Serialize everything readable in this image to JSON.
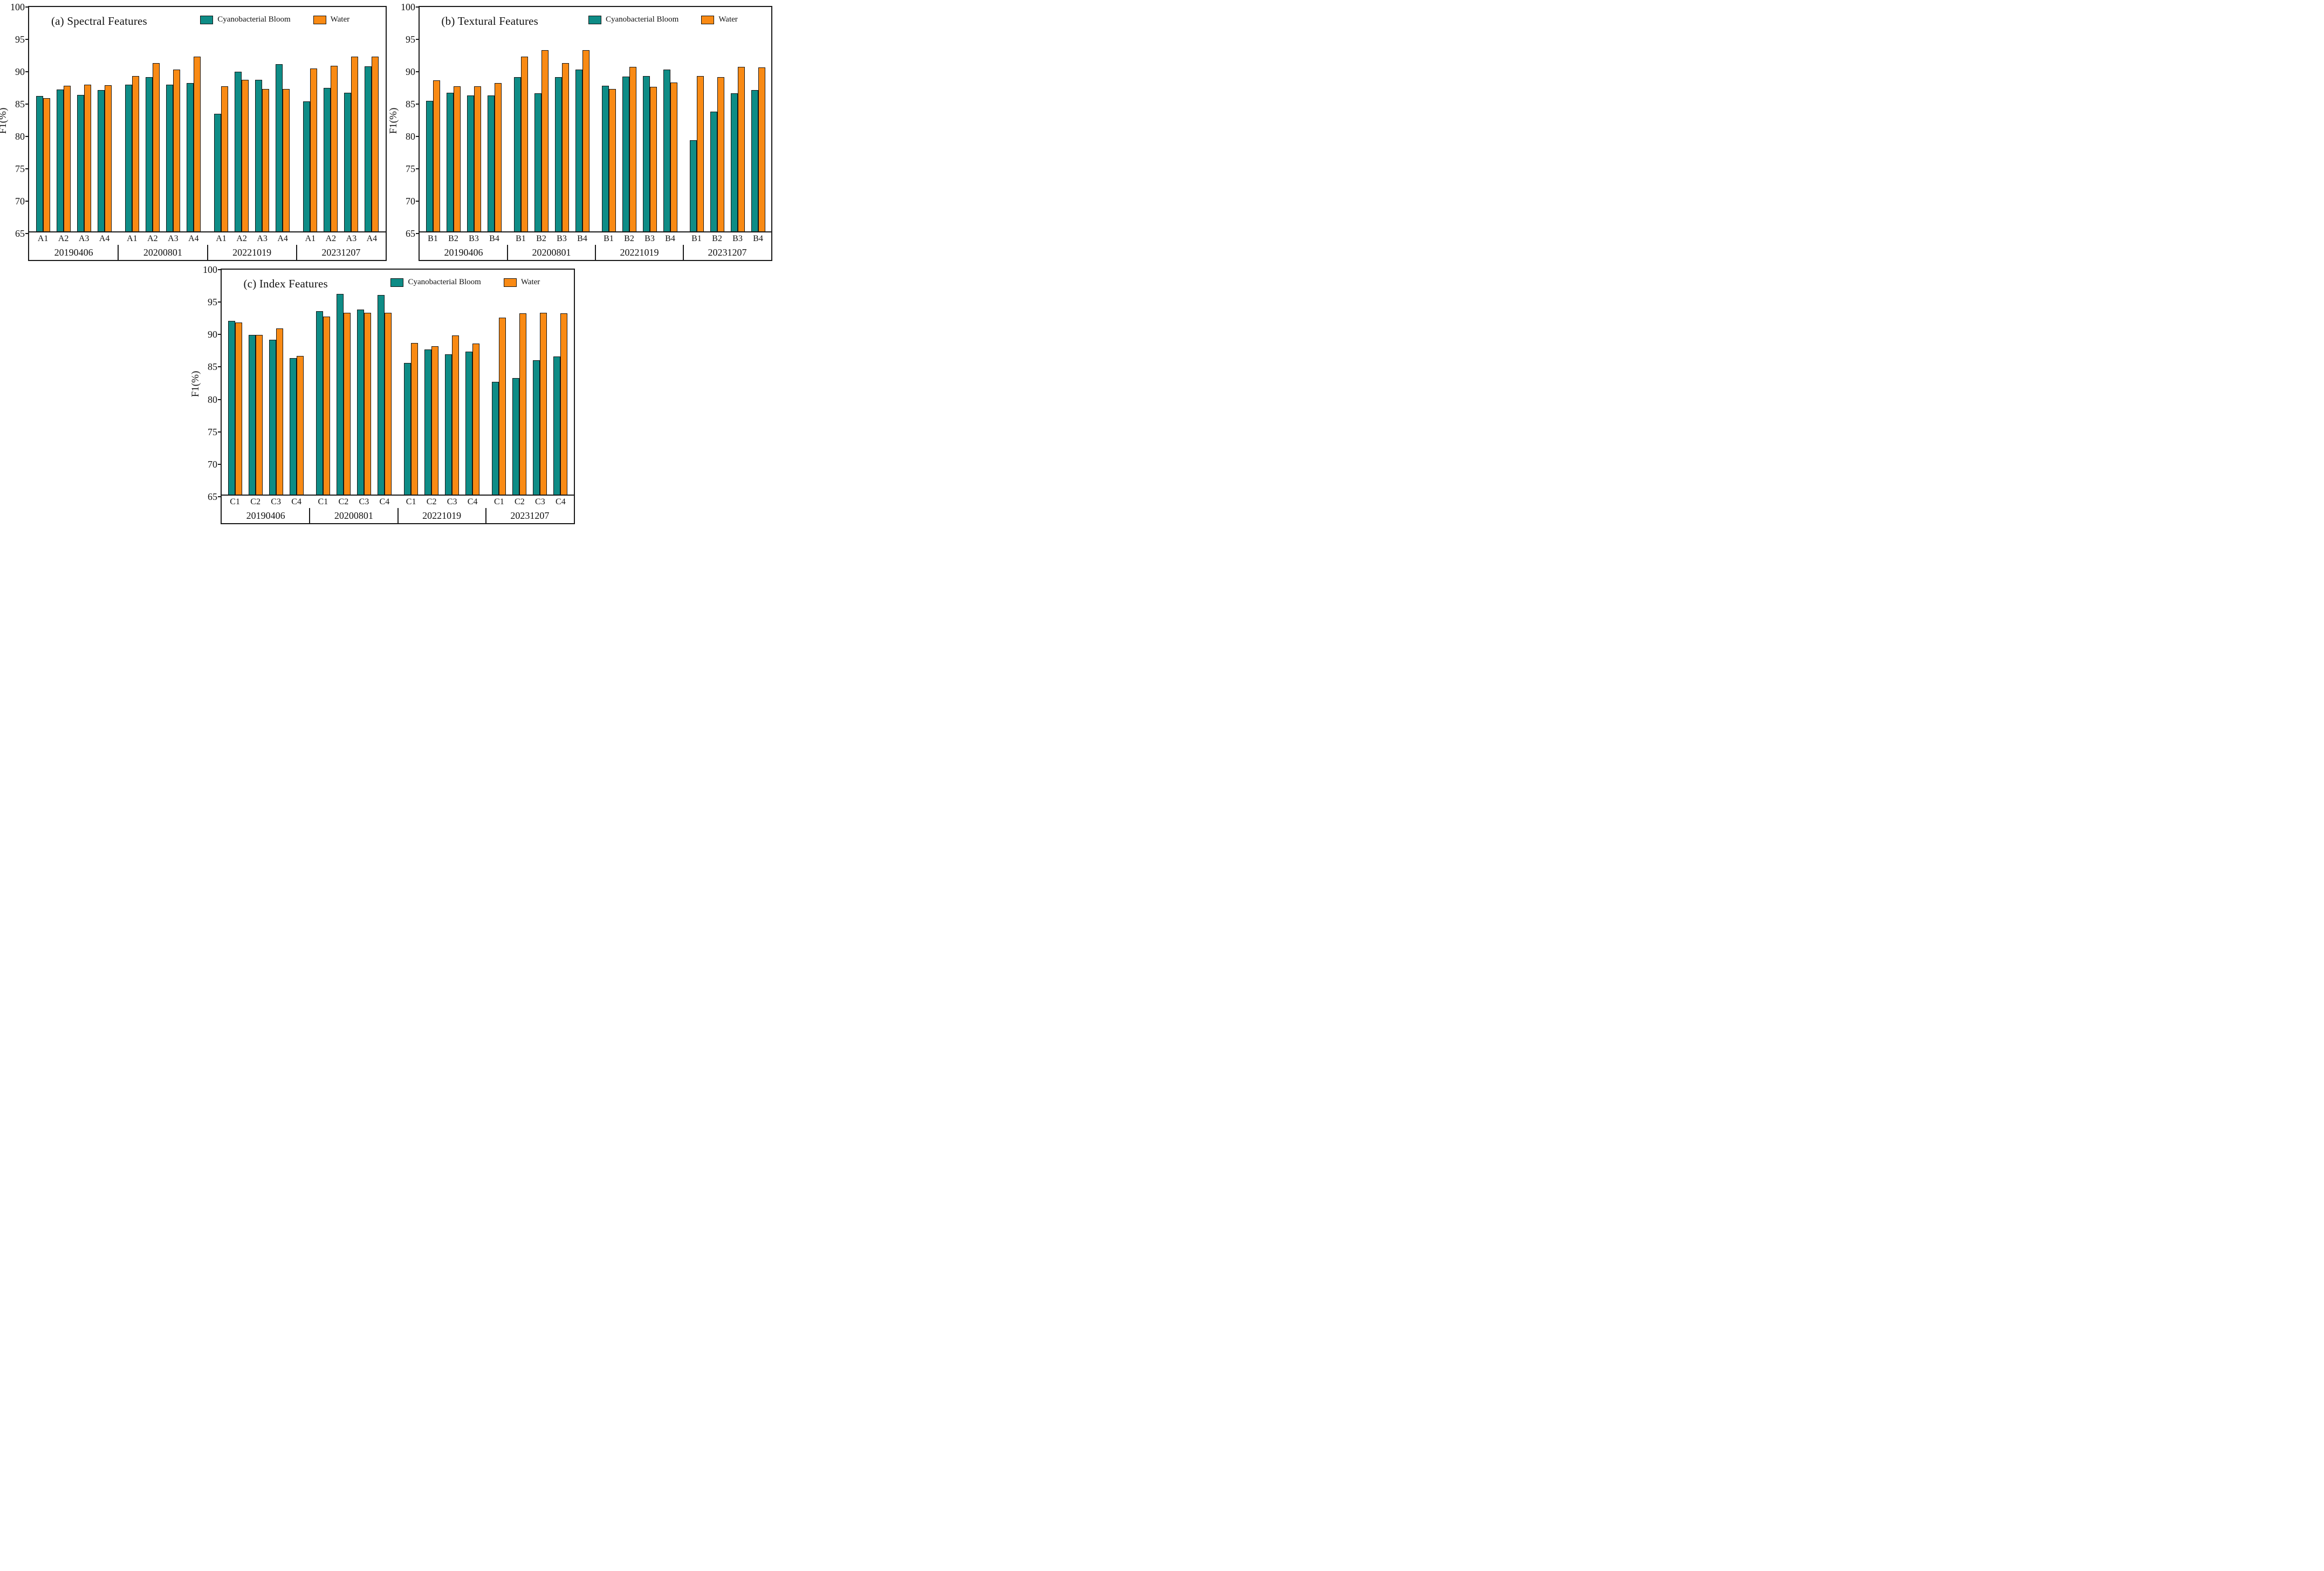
{
  "series_labels": [
    "Cyanobacterial Bloom",
    "Water"
  ],
  "colors": {
    "cyanobacterial_bloom": "#0E8C86",
    "water": "#F98A14",
    "bar_outline": "#151515",
    "frame": "#1A1A1A"
  },
  "y_axis": {
    "label": "F1(%)",
    "min": 65,
    "max": 100,
    "tick_step": 5,
    "ticks": [
      65,
      70,
      75,
      80,
      85,
      90,
      95,
      100
    ]
  },
  "dates": [
    "20190406",
    "20200801",
    "20221019",
    "20231207"
  ],
  "chart_data": [
    {
      "id": "a",
      "type": "bar",
      "title": "(a) Spectral Features",
      "ylabel": "F1(%)",
      "ylim": [
        65,
        100
      ],
      "yticks": [
        65,
        70,
        75,
        80,
        85,
        90,
        95,
        100
      ],
      "grid": false,
      "legend": [
        "Cyanobacterial Bloom",
        "Water"
      ],
      "legend_position": "top-inside",
      "bar_labels": [
        "A1",
        "A2",
        "A3",
        "A4"
      ],
      "groups": [
        {
          "label": "20190406",
          "cyanobacterial_bloom": [
            85.9,
            86.9,
            86.1,
            86.8
          ],
          "water": [
            85.6,
            87.5,
            87.7,
            87.6
          ]
        },
        {
          "label": "20200801",
          "cyanobacterial_bloom": [
            87.7,
            88.8,
            87.7,
            87.9
          ],
          "water": [
            89.0,
            91.0,
            90.0,
            92.0
          ]
        },
        {
          "label": "20221019",
          "cyanobacterial_bloom": [
            83.2,
            89.7,
            88.4,
            90.8
          ],
          "water": [
            87.4,
            88.4,
            87.0,
            87.0
          ]
        },
        {
          "label": "20231207",
          "cyanobacterial_bloom": [
            85.1,
            87.2,
            86.4,
            90.5
          ],
          "water": [
            90.2,
            90.6,
            92.0,
            92.0
          ]
        }
      ]
    },
    {
      "id": "b",
      "type": "bar",
      "title": "(b) Textural Features",
      "ylabel": "F1(%)",
      "ylim": [
        65,
        100
      ],
      "yticks": [
        65,
        70,
        75,
        80,
        85,
        90,
        95,
        100
      ],
      "grid": false,
      "legend": [
        "Cyanobacterial Bloom",
        "Water"
      ],
      "legend_position": "top-inside",
      "bar_labels": [
        "B1",
        "B2",
        "B3",
        "B4"
      ],
      "groups": [
        {
          "label": "20190406",
          "cyanobacterial_bloom": [
            85.2,
            86.4,
            86.0,
            86.0
          ],
          "water": [
            88.3,
            87.4,
            87.4,
            87.9
          ]
        },
        {
          "label": "20200801",
          "cyanobacterial_bloom": [
            88.8,
            86.3,
            88.8,
            90.0
          ],
          "water": [
            92.0,
            93.0,
            91.0,
            93.0
          ]
        },
        {
          "label": "20221019",
          "cyanobacterial_bloom": [
            87.5,
            88.9,
            89.0,
            90.0
          ],
          "water": [
            87.0,
            90.4,
            87.3,
            88.0
          ]
        },
        {
          "label": "20231207",
          "cyanobacterial_bloom": [
            79.1,
            83.5,
            86.3,
            86.8
          ],
          "water": [
            89.0,
            88.8,
            90.4,
            90.3
          ]
        }
      ]
    },
    {
      "id": "c",
      "type": "bar",
      "title": "(c) Index Features",
      "ylabel": "F1(%)",
      "ylim": [
        65,
        100
      ],
      "yticks": [
        65,
        70,
        75,
        80,
        85,
        90,
        95,
        100
      ],
      "grid": false,
      "legend": [
        "Cyanobacterial Bloom",
        "Water"
      ],
      "legend_position": "top-inside",
      "bar_labels": [
        "C1",
        "C2",
        "C3",
        "C4"
      ],
      "groups": [
        {
          "label": "20190406",
          "cyanobacterial_bloom": [
            91.8,
            89.6,
            88.9,
            86.0
          ],
          "water": [
            91.5,
            89.6,
            90.6,
            86.4
          ]
        },
        {
          "label": "20200801",
          "cyanobacterial_bloom": [
            93.3,
            95.9,
            93.5,
            95.8
          ],
          "water": [
            92.4,
            93.0,
            93.0,
            93.0
          ]
        },
        {
          "label": "20221019",
          "cyanobacterial_bloom": [
            85.3,
            87.4,
            86.6,
            87.0
          ],
          "water": [
            88.4,
            87.9,
            89.5,
            88.3
          ]
        },
        {
          "label": "20231207",
          "cyanobacterial_bloom": [
            82.4,
            83.0,
            85.7,
            86.3
          ],
          "water": [
            92.3,
            92.9,
            93.0,
            92.9
          ]
        }
      ]
    }
  ],
  "layout_note_visible_text_only": true
}
